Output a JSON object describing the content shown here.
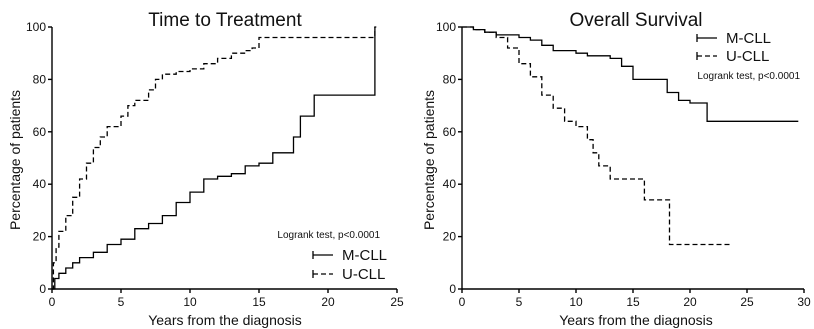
{
  "chart_data": [
    {
      "type": "line",
      "title": "Time to Treatment",
      "xlabel": "Years from the diagnosis",
      "ylabel": "Percentage of patients",
      "xlim": [
        0,
        25
      ],
      "ylim": [
        0,
        100
      ],
      "xticks": [
        0,
        5,
        10,
        15,
        20,
        25
      ],
      "yticks": [
        0,
        20,
        40,
        60,
        80,
        100
      ],
      "annotation": "Logrank test, p<0.0001",
      "legend_position": "bottom-right",
      "legend": [
        {
          "label": "M-CLL",
          "style": "solid"
        },
        {
          "label": "U-CLL",
          "style": "dashed"
        }
      ],
      "series": [
        {
          "name": "M-CLL",
          "style": "solid",
          "x": [
            0,
            0.2,
            0.5,
            1,
            1.5,
            2,
            3,
            4,
            5,
            6,
            7,
            8,
            9,
            10,
            11,
            12,
            13,
            14,
            15,
            16,
            17,
            17.5,
            18,
            18.5,
            19,
            20,
            22,
            23.3,
            23.4,
            23.5
          ],
          "y": [
            0,
            4,
            6,
            8,
            10,
            12,
            14,
            17,
            19,
            23,
            25,
            28,
            33,
            37,
            42,
            43,
            44,
            47,
            48,
            52,
            52,
            58,
            66,
            66,
            74,
            74,
            74,
            74,
            100,
            100
          ]
        },
        {
          "name": "U-CLL",
          "style": "dashed",
          "x": [
            0,
            0.1,
            0.3,
            0.5,
            1,
            1.5,
            2,
            2.5,
            3,
            3.5,
            4,
            5,
            5.5,
            6,
            7,
            7.5,
            8,
            9,
            10,
            11,
            12,
            13,
            14,
            14.5,
            15,
            16,
            17,
            18,
            20,
            22,
            23,
            23.4
          ],
          "y": [
            0,
            10,
            16,
            22,
            28,
            35,
            42,
            48,
            54,
            58,
            62,
            66,
            70,
            72,
            76,
            80,
            82,
            83,
            84,
            86,
            88,
            90,
            91,
            92,
            96,
            96,
            96,
            96,
            96,
            96,
            96,
            100
          ]
        }
      ]
    },
    {
      "type": "line",
      "title": "Overall Survival",
      "xlabel": "Years from the diagnosis",
      "ylabel": "Percentage of patients",
      "xlim": [
        0,
        30
      ],
      "ylim": [
        0,
        100
      ],
      "xticks": [
        0,
        5,
        10,
        15,
        20,
        25,
        30
      ],
      "yticks": [
        0,
        20,
        40,
        60,
        80,
        100
      ],
      "annotation": "Logrank test, p<0.0001",
      "legend_position": "top-right",
      "legend": [
        {
          "label": "M-CLL",
          "style": "solid"
        },
        {
          "label": "U-CLL",
          "style": "dashed"
        }
      ],
      "series": [
        {
          "name": "M-CLL",
          "style": "solid",
          "x": [
            0,
            1,
            2,
            3,
            5,
            6,
            7,
            8,
            10,
            11,
            12,
            13,
            14,
            15,
            16,
            17,
            18,
            19,
            20,
            21,
            21.5,
            22,
            25,
            29.5
          ],
          "y": [
            100,
            99,
            98,
            97,
            96,
            95,
            93,
            91,
            90,
            89,
            89,
            88,
            85,
            80,
            80,
            80,
            75,
            72,
            71,
            71,
            64,
            64,
            64,
            64
          ]
        },
        {
          "name": "U-CLL",
          "style": "dashed",
          "x": [
            0,
            1,
            2,
            3,
            4,
            5,
            6,
            7,
            8,
            9,
            10,
            11,
            11.5,
            12,
            13,
            14,
            15,
            16,
            17,
            18,
            18.2,
            20,
            23.5
          ],
          "y": [
            100,
            99,
            98,
            96,
            92,
            86,
            81,
            74,
            69,
            64,
            62,
            57,
            52,
            47,
            42,
            42,
            42,
            34,
            34,
            34,
            17,
            17,
            17
          ]
        }
      ]
    }
  ]
}
